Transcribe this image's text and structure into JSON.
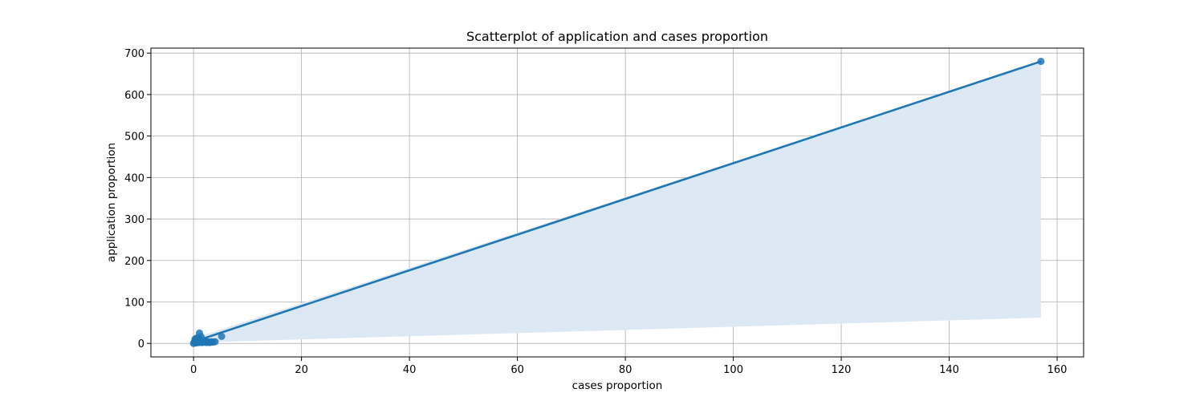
{
  "chart_data": {
    "type": "scatter",
    "title": "Scatterplot of application and cases proportion",
    "xlabel": "cases proportion",
    "ylabel": "application proportion",
    "xlim": [
      -7.9,
      164.9
    ],
    "ylim": [
      -32.5,
      712
    ],
    "xticks": [
      0,
      20,
      40,
      60,
      80,
      100,
      120,
      140,
      160
    ],
    "yticks": [
      0,
      100,
      200,
      300,
      400,
      500,
      600,
      700
    ],
    "grid": true,
    "colors": {
      "points": "#1f77b4",
      "line": "#1f77b4",
      "band": "#dce8f3",
      "grid": "#b0b0b0"
    },
    "points": [
      {
        "x": 0.0,
        "y": 0.0
      },
      {
        "x": 0.1,
        "y": 2.0
      },
      {
        "x": 0.2,
        "y": 5.0
      },
      {
        "x": 0.3,
        "y": 8.0
      },
      {
        "x": 0.3,
        "y": 11.0
      },
      {
        "x": 0.4,
        "y": 3.0
      },
      {
        "x": 0.5,
        "y": 1.0
      },
      {
        "x": 0.6,
        "y": 6.0
      },
      {
        "x": 0.7,
        "y": 14.0
      },
      {
        "x": 0.8,
        "y": 4.0
      },
      {
        "x": 0.9,
        "y": 9.0
      },
      {
        "x": 1.0,
        "y": 2.0
      },
      {
        "x": 1.0,
        "y": 12.0
      },
      {
        "x": 1.1,
        "y": 25.0
      },
      {
        "x": 1.2,
        "y": 6.0
      },
      {
        "x": 1.3,
        "y": 3.0
      },
      {
        "x": 1.4,
        "y": 16.0
      },
      {
        "x": 1.5,
        "y": 7.0
      },
      {
        "x": 1.6,
        "y": 2.0
      },
      {
        "x": 1.8,
        "y": 5.0
      },
      {
        "x": 2.0,
        "y": 3.0
      },
      {
        "x": 2.2,
        "y": 6.0
      },
      {
        "x": 2.4,
        "y": 2.0
      },
      {
        "x": 2.6,
        "y": 4.0
      },
      {
        "x": 2.8,
        "y": 3.0
      },
      {
        "x": 3.0,
        "y": 2.0
      },
      {
        "x": 3.3,
        "y": 4.0
      },
      {
        "x": 3.6,
        "y": 3.0
      },
      {
        "x": 4.0,
        "y": 4.0
      },
      {
        "x": 5.2,
        "y": 17.0
      },
      {
        "x": 157.0,
        "y": 680.0
      }
    ],
    "regression": {
      "x": [
        0,
        157
      ],
      "y": [
        4,
        680
      ]
    },
    "confidence_band": {
      "x": [
        0,
        157
      ],
      "upper": [
        12,
        680
      ],
      "lower": [
        2,
        62
      ]
    }
  }
}
